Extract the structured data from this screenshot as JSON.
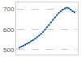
{
  "chart_data": {
    "type": "line",
    "x": [
      2017,
      2017.25,
      2017.5,
      2017.75,
      2018,
      2018.25,
      2018.5,
      2018.75,
      2019,
      2019.25,
      2019.5,
      2019.75,
      2020,
      2020.25,
      2020.5,
      2020.75,
      2021,
      2021.25,
      2021.5,
      2021.75,
      2022,
      2022.25,
      2022.5,
      2022.75,
      2023,
      2023.25,
      2023.5,
      2023.75,
      2024
    ],
    "values": [
      510,
      515,
      520,
      525,
      530,
      535,
      542,
      548,
      555,
      562,
      570,
      578,
      588,
      600,
      612,
      622,
      635,
      648,
      660,
      672,
      682,
      690,
      698,
      704,
      708,
      705,
      698,
      690,
      685
    ],
    "color": "#1a5fa8",
    "marker": "square",
    "line_style": "solid",
    "xlim": [
      2016.7,
      2024.3
    ],
    "ylim": [
      480,
      730
    ],
    "yticks": [
      500,
      600,
      700
    ],
    "grid": "y",
    "tick_labels": "y"
  }
}
